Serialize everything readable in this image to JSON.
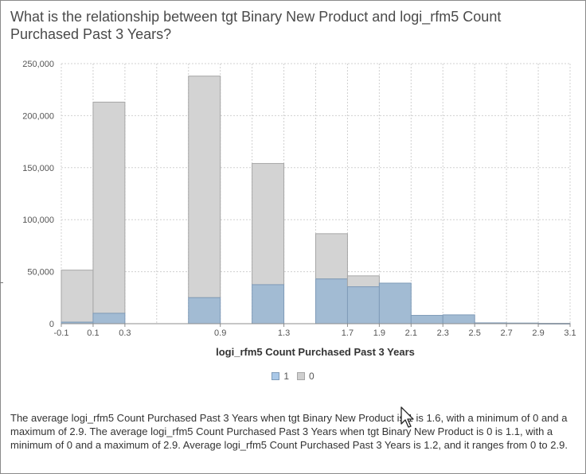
{
  "title": "What is the relationship between tgt Binary New Product and logi_rfm5 Count Purchased Past 3 Years?",
  "colors": {
    "series_1_fill": "#a2bbd3",
    "series_1_stroke": "#7f9bb8",
    "series_0_fill": "#d3d3d3",
    "series_0_stroke": "#a6a6a6",
    "grid": "#d0d0d0"
  },
  "legend": [
    {
      "label": "1",
      "color": "#a9c8e8"
    },
    {
      "label": "0",
      "color": "#cfcfcf"
    }
  ],
  "description": "The average logi_rfm5 Count Purchased Past 3 Years when tgt Binary New Product is 1 is 1.6, with a minimum of 0 and a maximum of 2.9. The average logi_rfm5 Count Purchased Past 3 Years when tgt Binary New Product is 0 is 1.1, with a minimum of 0 and a maximum of 2.9. Average logi_rfm5 Count Purchased Past 3 Years is 1.2, and it ranges from 0 to 2.9.",
  "chart_data": {
    "type": "bar",
    "subtype": "stacked histogram",
    "xlabel": "logi_rfm5 Count Purchased Past 3 Years",
    "ylabel": "",
    "xlim": [
      -0.1,
      3.1
    ],
    "ylim": [
      0,
      250000
    ],
    "x_ticks": [
      "-0.1",
      "0.1",
      "0.3",
      "0.9",
      "1.3",
      "1.7",
      "1.9",
      "2.1",
      "2.3",
      "2.5",
      "2.7",
      "2.9",
      "3.1"
    ],
    "y_ticks": [
      "0",
      "50,000",
      "100,000",
      "150,000",
      "200,000",
      "250,000"
    ],
    "grid": true,
    "legend_position": "bottom",
    "bins": [
      {
        "start": -0.1,
        "end": 0.1,
        "series_1": 1500,
        "total": 51500
      },
      {
        "start": 0.1,
        "end": 0.3,
        "series_1": 10000,
        "total": 213000
      },
      {
        "start": 0.7,
        "end": 0.9,
        "series_1": 25000,
        "total": 238000
      },
      {
        "start": 1.1,
        "end": 1.3,
        "series_1": 37500,
        "total": 154000
      },
      {
        "start": 1.5,
        "end": 1.7,
        "series_1": 43000,
        "total": 86500
      },
      {
        "start": 1.7,
        "end": 1.9,
        "series_1": 35500,
        "total": 46000
      },
      {
        "start": 1.9,
        "end": 2.1,
        "series_1": 39000,
        "total": 39000
      },
      {
        "start": 2.1,
        "end": 2.3,
        "series_1": 8000,
        "total": 8000
      },
      {
        "start": 2.3,
        "end": 2.5,
        "series_1": 8500,
        "total": 8500
      },
      {
        "start": 2.5,
        "end": 2.7,
        "series_1": 800,
        "total": 800
      },
      {
        "start": 2.7,
        "end": 2.9,
        "series_1": 600,
        "total": 600
      },
      {
        "start": 2.9,
        "end": 3.1,
        "series_1": 300,
        "total": 300
      }
    ]
  }
}
